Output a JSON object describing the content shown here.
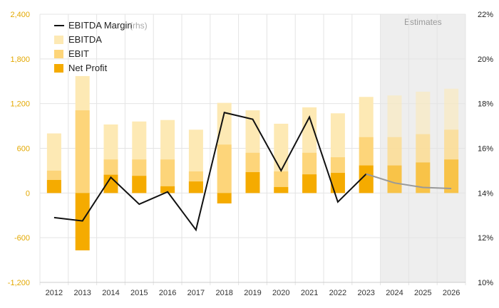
{
  "chart_data": {
    "type": "bar",
    "categories": [
      "2012",
      "2013",
      "2014",
      "2015",
      "2016",
      "2017",
      "2018",
      "2019",
      "2020",
      "2021",
      "2022",
      "2023",
      "2024",
      "2025",
      "2026"
    ],
    "series": [
      {
        "name": "EBITDA",
        "kind": "bar",
        "color": "#fde9b4",
        "values": [
          800,
          1570,
          920,
          960,
          980,
          850,
          1210,
          1110,
          930,
          1150,
          1070,
          1290,
          1310,
          1360,
          1400
        ]
      },
      {
        "name": "EBIT",
        "kind": "bar",
        "color": "#fdd57a",
        "values": [
          300,
          1110,
          450,
          450,
          450,
          290,
          650,
          540,
          290,
          540,
          480,
          750,
          750,
          790,
          850
        ]
      },
      {
        "name": "Net Profit",
        "kind": "bar",
        "color": "#f5ab00",
        "values": [
          175,
          -770,
          245,
          230,
          90,
          155,
          -140,
          280,
          80,
          250,
          270,
          370,
          370,
          410,
          450
        ]
      },
      {
        "name": "EBITDA Margin",
        "label_suffix": "(rhs)",
        "kind": "line",
        "axis": "right",
        "color": "#111111",
        "values": [
          12.9,
          12.75,
          14.7,
          13.5,
          14.05,
          12.35,
          17.6,
          17.3,
          15.0,
          17.4,
          13.6,
          14.85,
          14.45,
          14.25,
          14.2
        ]
      }
    ],
    "estimates_from": "2024",
    "estimates_label": "Estimates",
    "ylim_left": [
      -1200,
      2400
    ],
    "yticks_left": [
      "2,400",
      "1,800",
      "1,200",
      "600",
      "0",
      "-600",
      "-1,200"
    ],
    "ylim_right": [
      10,
      22
    ],
    "yticks_right": [
      "22%",
      "20%",
      "18%",
      "16%",
      "14%",
      "12%",
      "10%"
    ],
    "grid": true,
    "legend_position": "top-left"
  }
}
